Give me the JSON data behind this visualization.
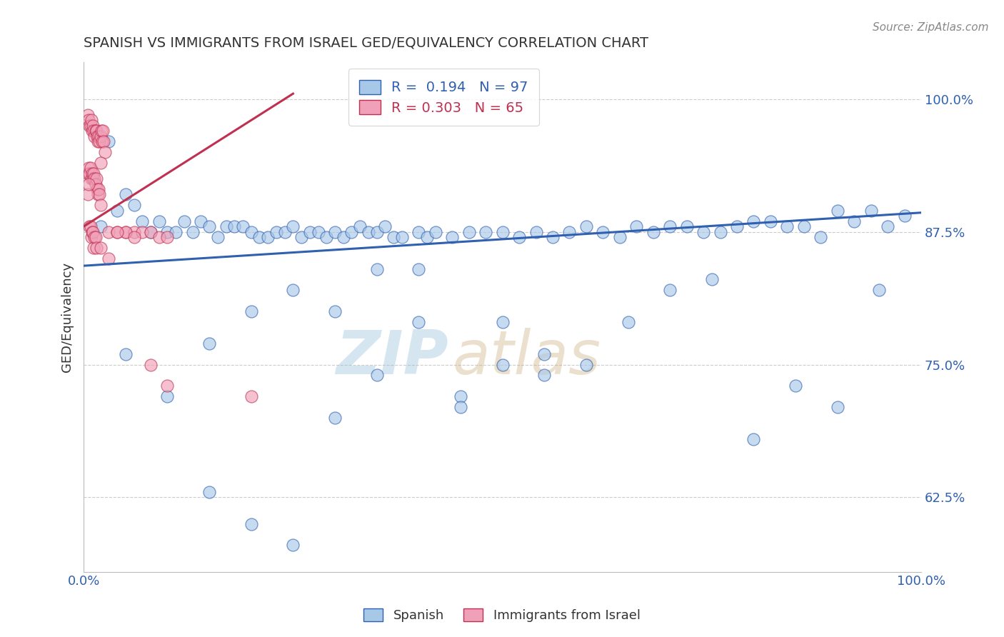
{
  "title": "SPANISH VS IMMIGRANTS FROM ISRAEL GED/EQUIVALENCY CORRELATION CHART",
  "source": "Source: ZipAtlas.com",
  "ylabel": "GED/Equivalency",
  "xlim": [
    0.0,
    1.0
  ],
  "ylim": [
    0.555,
    1.035
  ],
  "yticks": [
    0.625,
    0.75,
    0.875,
    1.0
  ],
  "ytick_labels": [
    "62.5%",
    "75.0%",
    "87.5%",
    "100.0%"
  ],
  "xticks": [
    0.0,
    1.0
  ],
  "xtick_labels": [
    "0.0%",
    "100.0%"
  ],
  "legend_R_blue": "0.194",
  "legend_N_blue": "97",
  "legend_R_pink": "0.303",
  "legend_N_pink": "65",
  "legend_label_blue": "Spanish",
  "legend_label_pink": "Immigrants from Israel",
  "blue_color": "#a8c8e8",
  "pink_color": "#f0a0b8",
  "blue_line_color": "#3060b0",
  "pink_line_color": "#c03050",
  "watermark_zip": "ZIP",
  "watermark_atlas": "atlas",
  "background_color": "#ffffff",
  "blue_line_x0": 0.0,
  "blue_line_y0": 0.843,
  "blue_line_x1": 1.0,
  "blue_line_y1": 0.893,
  "pink_line_x0": 0.0,
  "pink_line_y0": 0.88,
  "pink_line_x1": 0.25,
  "pink_line_y1": 1.005,
  "blue_scatter_x": [
    0.02,
    0.03,
    0.04,
    0.05,
    0.06,
    0.07,
    0.08,
    0.09,
    0.1,
    0.11,
    0.12,
    0.13,
    0.14,
    0.15,
    0.16,
    0.17,
    0.18,
    0.19,
    0.2,
    0.21,
    0.22,
    0.23,
    0.24,
    0.25,
    0.26,
    0.27,
    0.28,
    0.29,
    0.3,
    0.31,
    0.32,
    0.33,
    0.34,
    0.35,
    0.36,
    0.37,
    0.38,
    0.4,
    0.41,
    0.42,
    0.44,
    0.46,
    0.48,
    0.5,
    0.52,
    0.54,
    0.56,
    0.58,
    0.6,
    0.62,
    0.64,
    0.66,
    0.68,
    0.7,
    0.72,
    0.74,
    0.76,
    0.78,
    0.8,
    0.82,
    0.84,
    0.86,
    0.88,
    0.9,
    0.92,
    0.94,
    0.96,
    0.98,
    0.05,
    0.1,
    0.15,
    0.2,
    0.25,
    0.3,
    0.35,
    0.4,
    0.45,
    0.5,
    0.55,
    0.6,
    0.65,
    0.7,
    0.75,
    0.8,
    0.85,
    0.9,
    0.95,
    0.15,
    0.2,
    0.25,
    0.3,
    0.35,
    0.4,
    0.45,
    0.5,
    0.55
  ],
  "blue_scatter_y": [
    0.88,
    0.96,
    0.895,
    0.91,
    0.9,
    0.885,
    0.875,
    0.885,
    0.875,
    0.875,
    0.885,
    0.875,
    0.885,
    0.88,
    0.87,
    0.88,
    0.88,
    0.88,
    0.875,
    0.87,
    0.87,
    0.875,
    0.875,
    0.88,
    0.87,
    0.875,
    0.875,
    0.87,
    0.875,
    0.87,
    0.875,
    0.88,
    0.875,
    0.875,
    0.88,
    0.87,
    0.87,
    0.875,
    0.87,
    0.875,
    0.87,
    0.875,
    0.875,
    0.875,
    0.87,
    0.875,
    0.87,
    0.875,
    0.88,
    0.875,
    0.87,
    0.88,
    0.875,
    0.88,
    0.88,
    0.875,
    0.875,
    0.88,
    0.885,
    0.885,
    0.88,
    0.88,
    0.87,
    0.895,
    0.885,
    0.895,
    0.88,
    0.89,
    0.76,
    0.72,
    0.77,
    0.8,
    0.82,
    0.8,
    0.84,
    0.84,
    0.72,
    0.79,
    0.74,
    0.75,
    0.79,
    0.82,
    0.83,
    0.68,
    0.73,
    0.71,
    0.82,
    0.63,
    0.6,
    0.58,
    0.7,
    0.74,
    0.79,
    0.71,
    0.75,
    0.76
  ],
  "pink_scatter_x": [
    0.005,
    0.006,
    0.007,
    0.008,
    0.009,
    0.01,
    0.011,
    0.012,
    0.013,
    0.014,
    0.015,
    0.016,
    0.017,
    0.018,
    0.019,
    0.02,
    0.021,
    0.022,
    0.023,
    0.024,
    0.025,
    0.005,
    0.006,
    0.007,
    0.008,
    0.009,
    0.01,
    0.011,
    0.012,
    0.013,
    0.014,
    0.015,
    0.016,
    0.017,
    0.018,
    0.019,
    0.02,
    0.005,
    0.006,
    0.007,
    0.008,
    0.009,
    0.01,
    0.011,
    0.012,
    0.013,
    0.014,
    0.015,
    0.03,
    0.04,
    0.05,
    0.06,
    0.07,
    0.08,
    0.09,
    0.1,
    0.02,
    0.03,
    0.05,
    0.08,
    0.1,
    0.02,
    0.04,
    0.06,
    0.2
  ],
  "pink_scatter_y": [
    0.985,
    0.98,
    0.975,
    0.975,
    0.98,
    0.97,
    0.975,
    0.97,
    0.965,
    0.97,
    0.97,
    0.965,
    0.96,
    0.965,
    0.96,
    0.965,
    0.97,
    0.96,
    0.97,
    0.96,
    0.95,
    0.93,
    0.935,
    0.93,
    0.935,
    0.925,
    0.93,
    0.925,
    0.93,
    0.925,
    0.92,
    0.925,
    0.915,
    0.91,
    0.915,
    0.91,
    0.9,
    0.91,
    0.92,
    0.88,
    0.88,
    0.87,
    0.875,
    0.875,
    0.86,
    0.87,
    0.87,
    0.86,
    0.875,
    0.875,
    0.875,
    0.875,
    0.875,
    0.875,
    0.87,
    0.87,
    0.86,
    0.85,
    0.875,
    0.75,
    0.73,
    0.94,
    0.875,
    0.87,
    0.72
  ]
}
